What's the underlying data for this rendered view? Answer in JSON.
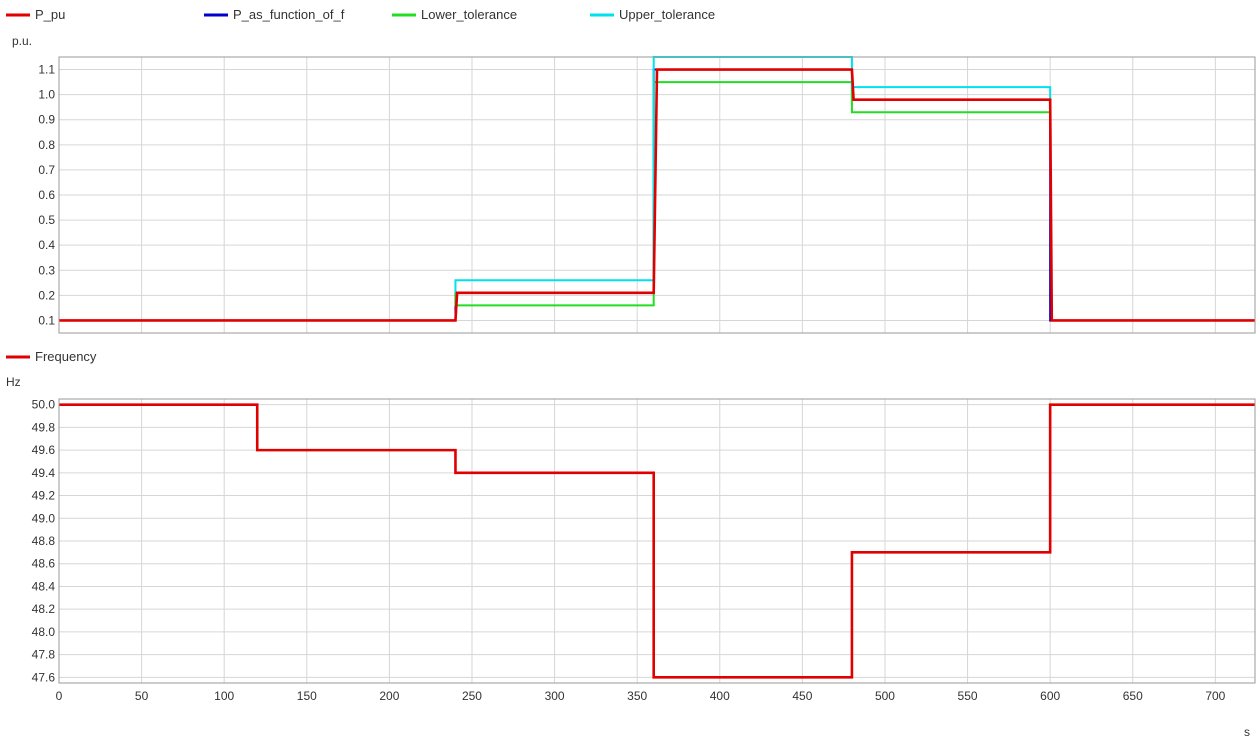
{
  "chart_data": [
    {
      "type": "line",
      "ylabel": "p.u.",
      "xlim": [
        0,
        724
      ],
      "ylim": [
        0.05,
        1.15
      ],
      "yticks": [
        0.1,
        0.2,
        0.3,
        0.4,
        0.5,
        0.6,
        0.7,
        0.8,
        0.9,
        1.0,
        1.1
      ],
      "xticks": [
        0,
        50,
        100,
        150,
        200,
        250,
        300,
        350,
        400,
        450,
        500,
        550,
        600,
        650,
        700
      ],
      "grid": true,
      "legend": "top",
      "series": [
        {
          "name": "P_as_function_of_f",
          "color": "#0000cc",
          "x": [
            0,
            240,
            240,
            360,
            360,
            480,
            480,
            600,
            600,
            724
          ],
          "y": [
            0.1,
            0.1,
            0.21,
            0.21,
            1.1,
            1.1,
            0.98,
            0.98,
            0.1,
            0.1
          ]
        },
        {
          "name": "Lower_tolerance",
          "color": "#22dd22",
          "x": [
            240,
            240,
            360,
            360,
            480,
            480,
            600
          ],
          "y": [
            0.21,
            0.16,
            0.16,
            1.05,
            1.05,
            0.93,
            0.93
          ]
        },
        {
          "name": "Upper_tolerance",
          "color": "#00e0ee",
          "x": [
            240,
            240,
            360,
            360,
            480,
            480,
            600,
            600
          ],
          "y": [
            0.21,
            0.26,
            0.26,
            1.15,
            1.15,
            1.03,
            1.03,
            0.98
          ]
        },
        {
          "name": "P_pu",
          "color": "#e00000",
          "x": [
            0,
            240,
            241,
            360,
            362,
            480,
            481,
            600,
            601,
            724
          ],
          "y": [
            0.1,
            0.1,
            0.21,
            0.21,
            1.1,
            1.1,
            0.98,
            0.98,
            0.1,
            0.1
          ]
        }
      ],
      "legend_order": [
        "P_pu",
        "P_as_function_of_f",
        "Lower_tolerance",
        "Upper_tolerance"
      ]
    },
    {
      "type": "line",
      "ylabel": "Hz",
      "xlabel": "s",
      "xlim": [
        0,
        724
      ],
      "ylim": [
        47.55,
        50.05
      ],
      "yticks": [
        "47.6",
        "47.8",
        "48.0",
        "48.2",
        "48.4",
        "48.6",
        "48.8",
        "49.0",
        "49.2",
        "49.4",
        "49.6",
        "49.8",
        "50.0"
      ],
      "xticks": [
        0,
        50,
        100,
        150,
        200,
        250,
        300,
        350,
        400,
        450,
        500,
        550,
        600,
        650,
        700
      ],
      "grid": true,
      "legend": "top-left",
      "series": [
        {
          "name": "Frequency",
          "color": "#e00000",
          "x": [
            0,
            120,
            120,
            240,
            240,
            360,
            360,
            480,
            480,
            600,
            600,
            724
          ],
          "y": [
            50.0,
            50.0,
            49.6,
            49.6,
            49.4,
            49.4,
            47.6,
            47.6,
            48.7,
            48.7,
            50.0,
            50.0
          ]
        }
      ]
    }
  ]
}
